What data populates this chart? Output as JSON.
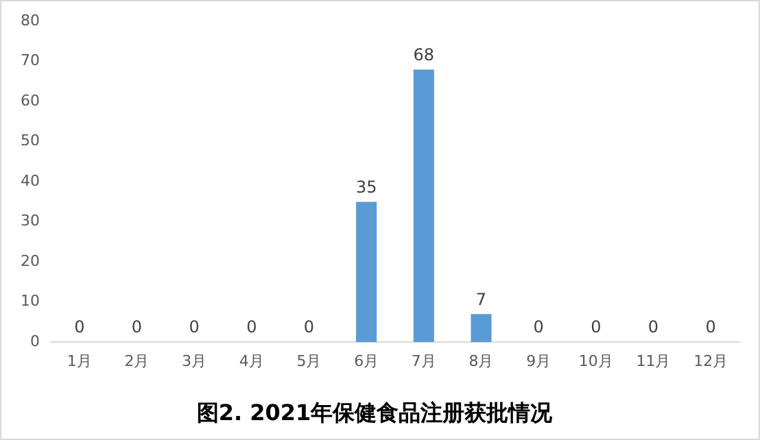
{
  "chart_data": {
    "type": "bar",
    "title": "图2. 2021年保健食品注册获批情况",
    "categories": [
      "1月",
      "2月",
      "3月",
      "4月",
      "5月",
      "6月",
      "7月",
      "8月",
      "9月",
      "10月",
      "11月",
      "12月"
    ],
    "values": [
      0,
      0,
      0,
      0,
      0,
      35,
      68,
      7,
      0,
      0,
      0,
      0
    ],
    "color": "#5b9bd5",
    "ylim": [
      0,
      80
    ],
    "yticks": [
      0,
      10,
      20,
      30,
      40,
      50,
      60,
      70,
      80
    ],
    "grid": false,
    "legend": false,
    "data_labels": true
  }
}
